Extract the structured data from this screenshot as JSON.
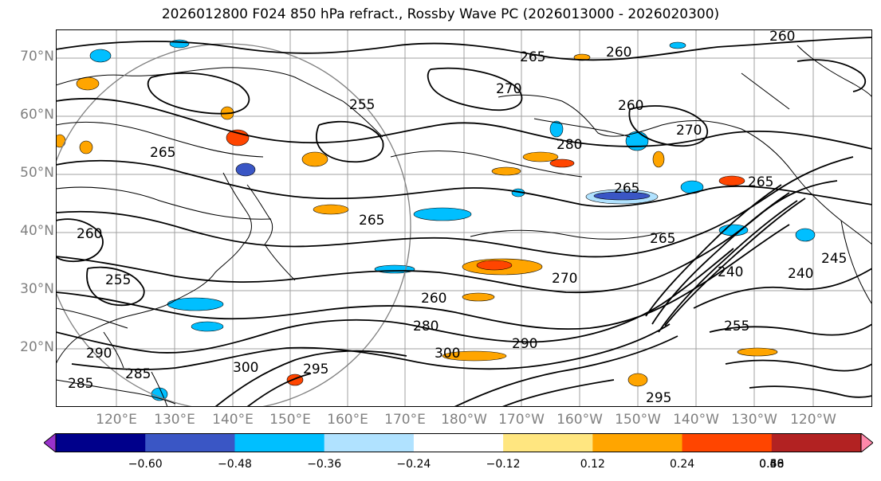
{
  "title": "2026012800 F024 850 hPa refract., Rossby Wave PC (2026013000 - 2026020300)",
  "lat_labels": [
    "70°N",
    "60°N",
    "50°N",
    "40°N",
    "30°N",
    "20°N"
  ],
  "lon_labels": [
    "120°E",
    "130°E",
    "140°E",
    "150°E",
    "160°E",
    "170°E",
    "180°W",
    "170°W",
    "160°W",
    "150°W",
    "140°W",
    "130°W",
    "120°W"
  ],
  "contour_labels": [
    "260",
    "265",
    "270",
    "260",
    "265",
    "270",
    "280",
    "265",
    "265",
    "260",
    "255",
    "240",
    "245",
    "240",
    "255",
    "270",
    "265",
    "260",
    "280",
    "290",
    "300",
    "295",
    "285",
    "290",
    "295",
    "300",
    "285",
    "265",
    "260",
    "255"
  ],
  "colorbar": {
    "colors": [
      "#9932cc",
      "#00008b",
      "#3a56c5",
      "#00bfff",
      "#b0e2ff",
      "#ffffff",
      "#ffe680",
      "#ffa500",
      "#ff4500",
      "#b22222",
      "#ff88aa"
    ],
    "labels": [
      "−0.60",
      "−0.48",
      "−0.36",
      "−0.24",
      "−0.12",
      "0.12",
      "0.24",
      "0.36",
      "0.48",
      "0.60"
    ]
  },
  "colors": {
    "positive_mid": "#ffa500",
    "positive_low": "#ffe680",
    "positive_high": "#ff4500",
    "negative_mid": "#00bfff",
    "negative_low": "#b0e2ff",
    "negative_high": "#3a56c5"
  }
}
